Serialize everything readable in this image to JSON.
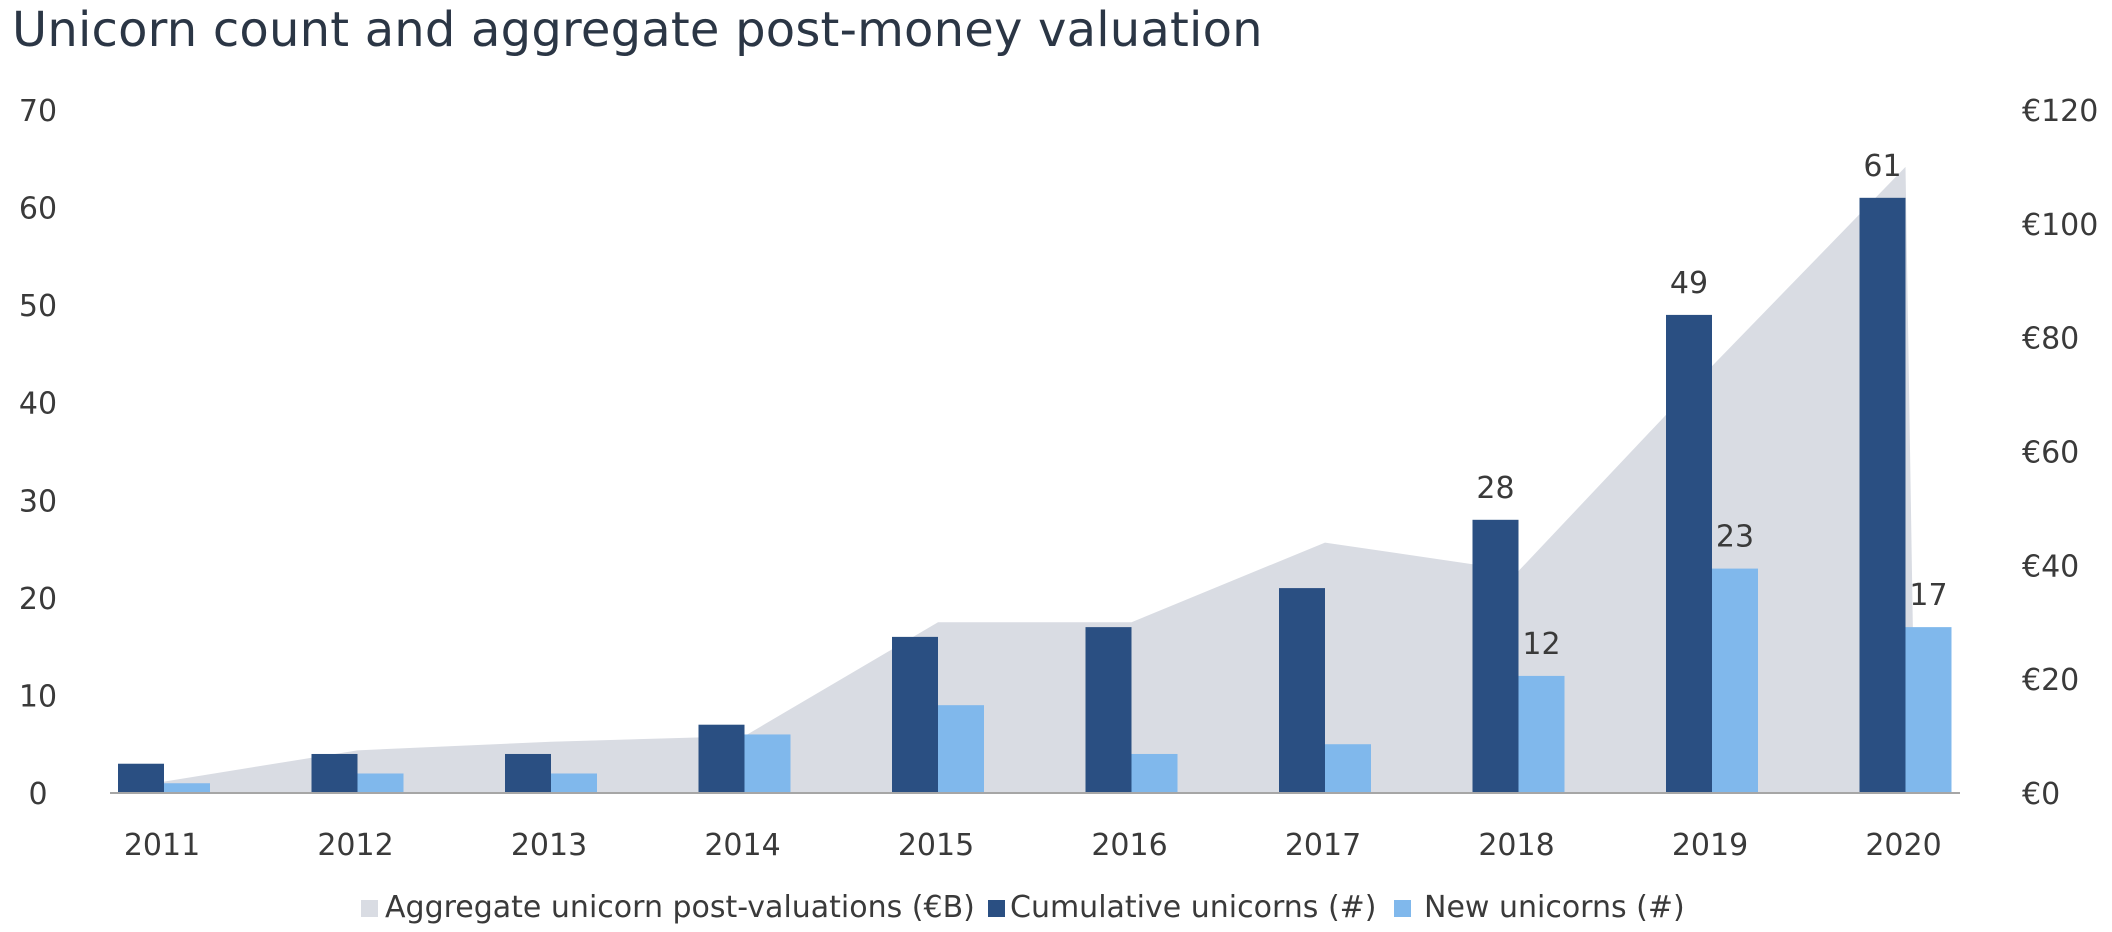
{
  "chart_data": {
    "type": "bar",
    "title": "Unicorn count and aggregate post-money valuation",
    "categories": [
      "2011",
      "2012",
      "2013",
      "2014",
      "2015",
      "2016",
      "2017",
      "2018",
      "2019",
      "2020"
    ],
    "series": [
      {
        "name": "Aggregate unicorn post-valuations (€B)",
        "kind": "area",
        "axis": "right",
        "values": [
          2,
          7.5,
          9,
          10,
          30,
          30,
          44,
          39,
          75,
          110
        ],
        "color": "#d9dce3"
      },
      {
        "name": "Cumulative unicorns (#)",
        "kind": "bar",
        "axis": "left",
        "values": [
          3,
          4,
          4,
          7,
          16,
          17,
          21,
          28,
          49,
          61
        ],
        "color": "#2a4f82"
      },
      {
        "name": "New unicorns (#)",
        "kind": "bar",
        "axis": "left",
        "values": [
          1,
          2,
          2,
          6,
          9,
          4,
          5,
          12,
          23,
          17
        ],
        "color": "#80b8ec"
      }
    ],
    "data_labels": [
      {
        "series": 1,
        "category": "2018",
        "text": "28"
      },
      {
        "series": 1,
        "category": "2019",
        "text": "49"
      },
      {
        "series": 1,
        "category": "2020",
        "text": "61"
      },
      {
        "series": 2,
        "category": "2018",
        "text": "12"
      },
      {
        "series": 2,
        "category": "2019",
        "text": "23"
      },
      {
        "series": 2,
        "category": "2020",
        "text": "17"
      }
    ],
    "y_left": {
      "min": 0,
      "max": 70,
      "ticks": [
        "0",
        "10",
        "20",
        "30",
        "40",
        "50",
        "60",
        "70"
      ]
    },
    "y_right": {
      "min": 0,
      "max": 120,
      "ticks": [
        "€0",
        "€20",
        "€40",
        "€60",
        "€80",
        "€100",
        "€120"
      ]
    },
    "grid": false,
    "legend_position": "bottom",
    "axis_color": "#a6a6a6"
  }
}
